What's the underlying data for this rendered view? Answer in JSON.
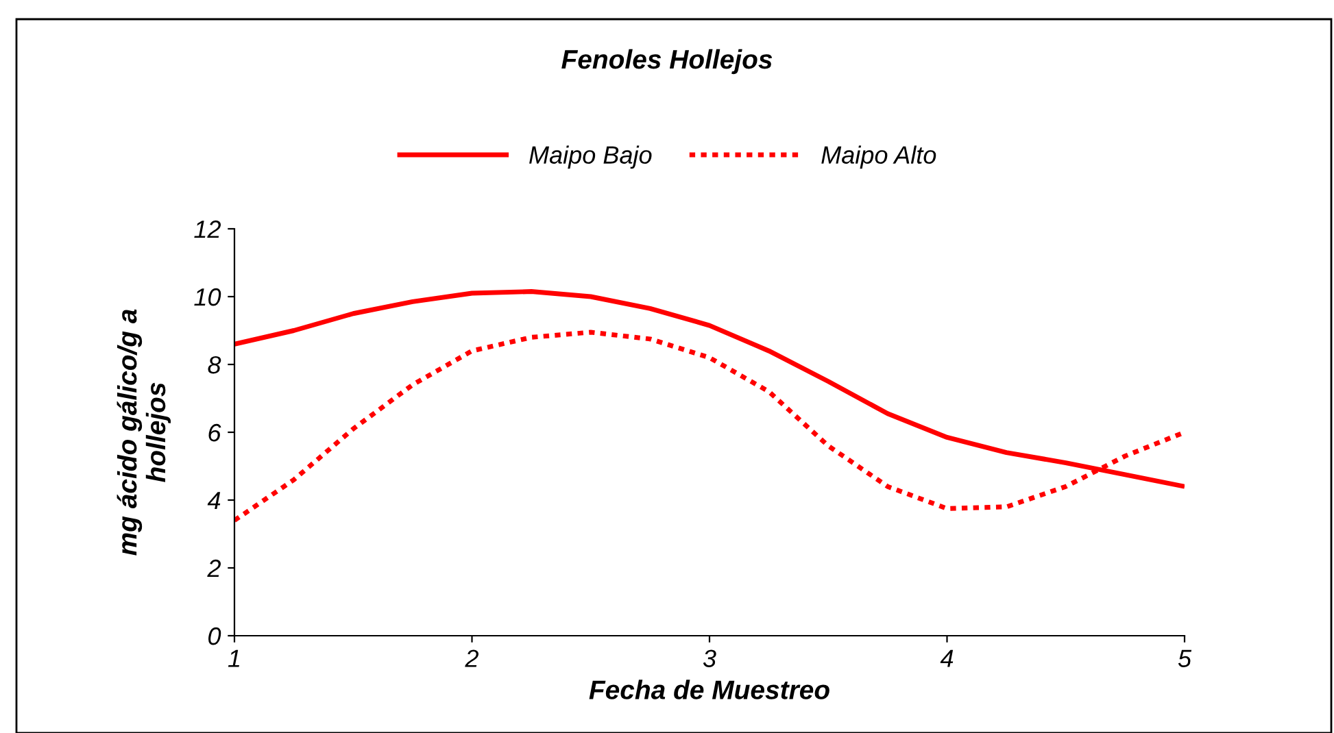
{
  "chart_data": {
    "type": "line",
    "title": "Fenoles Hollejos",
    "xlabel": "Fecha de Muestreo",
    "ylabel": "mg ácido gálico/g a\nhollejos",
    "x": [
      1,
      1.25,
      1.5,
      1.75,
      2,
      2.25,
      2.5,
      2.75,
      3,
      3.25,
      3.5,
      3.75,
      4,
      4.25,
      4.5,
      4.75,
      5
    ],
    "series": [
      {
        "name": "Maipo Bajo",
        "color": "#ff0000",
        "line_style": "solid",
        "values": [
          8.6,
          9.0,
          9.5,
          9.85,
          10.1,
          10.15,
          10.0,
          9.65,
          9.15,
          8.4,
          7.5,
          6.55,
          5.85,
          5.4,
          5.1,
          4.75,
          4.4
        ]
      },
      {
        "name": "Maipo Alto",
        "color": "#ff0000",
        "line_style": "dotted",
        "values": [
          3.4,
          4.6,
          6.1,
          7.4,
          8.4,
          8.8,
          8.95,
          8.75,
          8.2,
          7.2,
          5.6,
          4.4,
          3.75,
          3.8,
          4.4,
          5.3,
          6.0
        ]
      }
    ],
    "xlim": [
      1,
      5
    ],
    "xticks": [
      1,
      2,
      3,
      4,
      5
    ],
    "ylim": [
      0,
      12
    ],
    "yticks": [
      0,
      2,
      4,
      6,
      8,
      10,
      12
    ],
    "grid": false,
    "legend": "top",
    "marker": "none"
  }
}
